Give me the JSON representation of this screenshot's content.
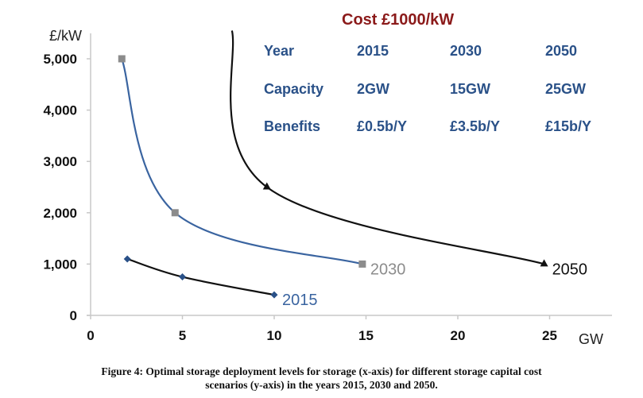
{
  "chart_data": {
    "type": "line",
    "title": "",
    "xlabel": "GW",
    "ylabel": "£/kW",
    "xlim": [
      0,
      27
    ],
    "ylim": [
      0,
      5000
    ],
    "x_ticks": [
      0,
      5,
      10,
      15,
      20,
      25
    ],
    "x_tick_labels": [
      "0",
      "5",
      "10",
      "15",
      "20",
      "25"
    ],
    "y_ticks": [
      0,
      1000,
      2000,
      3000,
      4000,
      5000
    ],
    "y_tick_labels": [
      "0",
      "1,000",
      "2,000",
      "3,000",
      "4,000",
      "5,000"
    ],
    "grid": false,
    "legend": "inline labels at series ends",
    "series": [
      {
        "name": "2015",
        "label": "2015",
        "line_color": "#111111",
        "marker": "diamond",
        "marker_color": "#2a5188",
        "label_color": "#3a64a0",
        "points": [
          [
            2,
            1100
          ],
          [
            5,
            750
          ],
          [
            10,
            400
          ]
        ]
      },
      {
        "name": "2030",
        "label": "2030",
        "line_color": "#3a64a0",
        "marker": "square",
        "marker_color": "#8c8c8c",
        "label_color": "#8c8c8c",
        "points": [
          [
            1.7,
            5000
          ],
          [
            4.6,
            2000
          ],
          [
            14.8,
            1000
          ]
        ]
      },
      {
        "name": "2050",
        "label": "2050",
        "line_color": "#111111",
        "marker": "triangle",
        "marker_color": "#111111",
        "label_color": "#111111",
        "points": [
          [
            7.7,
            5550
          ],
          [
            9.6,
            2500
          ],
          [
            24.7,
            1000
          ]
        ],
        "marker_from_index": 1
      }
    ],
    "annotation_table": {
      "title": "Cost £1000/kW",
      "rows": [
        {
          "label": "Year",
          "values": [
            "2015",
            "2030",
            "2050"
          ]
        },
        {
          "label": "Capacity",
          "values": [
            "2GW",
            "15GW",
            "25GW"
          ]
        },
        {
          "label": "Benefits",
          "values": [
            "£0.5b/Y",
            "£3.5b/Y",
            "£15b/Y"
          ]
        }
      ]
    }
  },
  "caption": {
    "line1": "Figure 4: Optimal storage deployment levels for storage (x-axis) for different storage capital cost",
    "line2": "scenarios (y-axis) in the years 2015, 2030 and 2050."
  }
}
